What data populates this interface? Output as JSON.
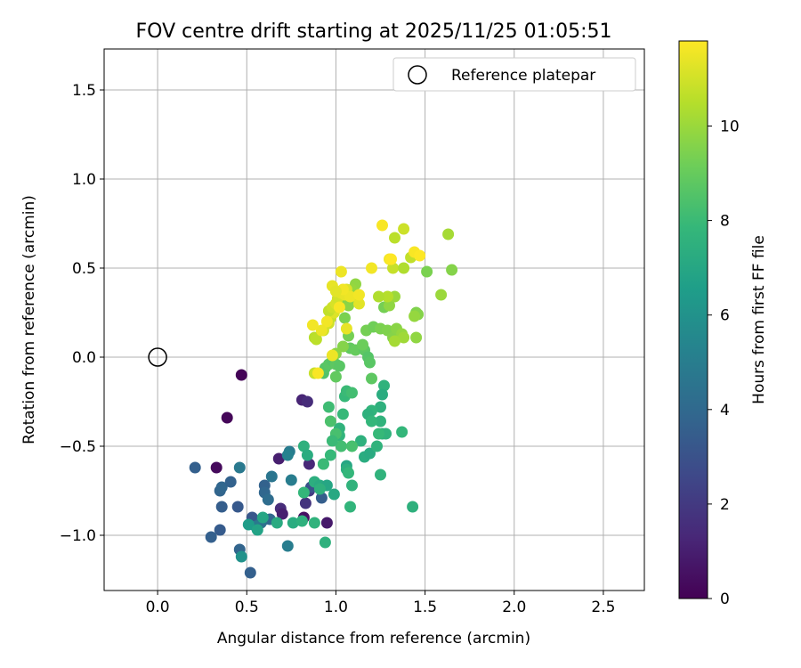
{
  "chart_data": {
    "type": "scatter",
    "title": "FOV centre drift starting at 2025/11/25 01:05:51",
    "xlabel": "Angular distance from reference (arcmin)",
    "ylabel": "Rotation from reference (arcmin)",
    "xlim": [
      -0.3,
      2.73
    ],
    "ylim": [
      -1.31,
      1.73
    ],
    "grid": true,
    "xticks": [
      0.0,
      0.5,
      1.0,
      1.5,
      2.0,
      2.5
    ],
    "xtick_labels": [
      "0.0",
      "0.5",
      "1.0",
      "1.5",
      "2.0",
      "2.5"
    ],
    "yticks": [
      -1.0,
      -0.5,
      0.0,
      0.5,
      1.0,
      1.5
    ],
    "ytick_labels": [
      "−1.0",
      "−0.5",
      "0.0",
      "0.5",
      "1.0",
      "1.5"
    ],
    "legend": {
      "position": "top-right",
      "entries": [
        "Reference platepar"
      ]
    },
    "reference_point": {
      "x": 0.0,
      "y": 0.0
    },
    "colorbar": {
      "label": "Hours from first FF file",
      "range": [
        0,
        11.8
      ],
      "ticks": [
        0,
        2,
        4,
        6,
        8,
        10
      ],
      "tick_labels": [
        "0",
        "2",
        "4",
        "6",
        "8",
        "10"
      ],
      "colormap": "viridis",
      "colors": [
        "#440154",
        "#482878",
        "#3e4989",
        "#31688e",
        "#26828e",
        "#1f9e89",
        "#35b779",
        "#6ece58",
        "#b5de2b",
        "#fde725"
      ]
    },
    "points": [
      [
        0.47,
        -0.1,
        0.1
      ],
      [
        0.39,
        -0.34,
        0.2
      ],
      [
        0.33,
        -0.62,
        0.3
      ],
      [
        0.68,
        -0.57,
        1.0
      ],
      [
        0.81,
        -0.24,
        1.2
      ],
      [
        0.84,
        -0.25,
        1.5
      ],
      [
        0.85,
        -0.6,
        1.3
      ],
      [
        0.83,
        -0.82,
        1.8
      ],
      [
        0.69,
        -0.85,
        1.5
      ],
      [
        0.7,
        -0.88,
        1.0
      ],
      [
        0.82,
        -0.9,
        0.5
      ],
      [
        0.95,
        -0.93,
        0.8
      ],
      [
        0.85,
        -0.75,
        2.0
      ],
      [
        0.86,
        -0.73,
        3.0
      ],
      [
        0.92,
        -0.79,
        3.5
      ],
      [
        0.21,
        -0.62,
        3.6
      ],
      [
        0.35,
        -0.75,
        3.8
      ],
      [
        0.36,
        -0.73,
        3.9
      ],
      [
        0.41,
        -0.7,
        3.7
      ],
      [
        0.36,
        -0.84,
        3.5
      ],
      [
        0.45,
        -0.84,
        3.3
      ],
      [
        0.35,
        -0.97,
        3.4
      ],
      [
        0.3,
        -1.01,
        3.6
      ],
      [
        0.46,
        -1.08,
        3.8
      ],
      [
        0.52,
        -1.21,
        3.6
      ],
      [
        0.53,
        -0.9,
        3.2
      ],
      [
        0.6,
        -0.72,
        3.7
      ],
      [
        0.6,
        -0.76,
        3.9
      ],
      [
        0.62,
        -0.8,
        4.2
      ],
      [
        0.6,
        -0.91,
        4.5
      ],
      [
        0.63,
        -0.91,
        4.0
      ],
      [
        0.58,
        -0.93,
        4.4
      ],
      [
        0.55,
        -0.95,
        4.8
      ],
      [
        0.64,
        -0.67,
        4.6
      ],
      [
        0.46,
        -0.62,
        4.8
      ],
      [
        0.74,
        -0.53,
        4.9
      ],
      [
        0.73,
        -0.55,
        5.2
      ],
      [
        0.75,
        -0.69,
        5.0
      ],
      [
        0.73,
        -1.06,
        5.0
      ],
      [
        0.47,
        -1.12,
        6.0
      ],
      [
        0.51,
        -0.94,
        6.5
      ],
      [
        0.56,
        -0.97,
        6.8
      ],
      [
        0.59,
        -0.9,
        7.0
      ],
      [
        0.67,
        -0.93,
        7.2
      ],
      [
        0.76,
        -0.93,
        7.3
      ],
      [
        0.81,
        -0.92,
        7.5
      ],
      [
        0.88,
        -0.93,
        7.6
      ],
      [
        0.94,
        -1.04,
        7.5
      ],
      [
        0.88,
        -0.7,
        7.4
      ],
      [
        0.91,
        -0.72,
        7.2
      ],
      [
        0.95,
        -0.72,
        7.0
      ],
      [
        0.99,
        -0.77,
        7.1
      ],
      [
        0.91,
        -0.74,
        7.5
      ],
      [
        0.82,
        -0.76,
        7.8
      ],
      [
        0.82,
        -0.5,
        7.5
      ],
      [
        0.84,
        -0.55,
        7.3
      ],
      [
        0.93,
        -0.6,
        7.6
      ],
      [
        0.97,
        -0.55,
        7.9
      ],
      [
        1.06,
        -0.61,
        7.0
      ],
      [
        1.06,
        -0.63,
        7.4
      ],
      [
        1.07,
        -0.65,
        7.8
      ],
      [
        1.09,
        -0.72,
        7.6
      ],
      [
        1.08,
        -0.84,
        7.7
      ],
      [
        1.14,
        -0.47,
        7.5
      ],
      [
        1.16,
        -0.56,
        7.3
      ],
      [
        1.19,
        -0.54,
        7.2
      ],
      [
        1.23,
        -0.5,
        7.6
      ],
      [
        1.26,
        -0.43,
        7.4
      ],
      [
        1.28,
        -0.43,
        7.6
      ],
      [
        1.24,
        -0.43,
        7.9
      ],
      [
        1.25,
        -0.66,
        7.6
      ],
      [
        1.37,
        -0.42,
        7.8
      ],
      [
        1.43,
        -0.84,
        7.5
      ],
      [
        1.27,
        -0.16,
        7.6
      ],
      [
        1.26,
        -0.21,
        7.3
      ],
      [
        1.25,
        -0.28,
        7.5
      ],
      [
        1.25,
        -0.36,
        7.6
      ],
      [
        1.2,
        -0.3,
        7.7
      ],
      [
        1.18,
        -0.32,
        7.5
      ],
      [
        1.2,
        -0.36,
        7.8
      ],
      [
        1.05,
        -0.22,
        7.9
      ],
      [
        1.06,
        -0.19,
        8.0
      ],
      [
        1.09,
        -0.2,
        8.2
      ],
      [
        1.04,
        -0.32,
        7.9
      ],
      [
        1.02,
        -0.4,
        7.6
      ],
      [
        1.02,
        -0.44,
        7.7
      ],
      [
        1.03,
        -0.5,
        8.2
      ],
      [
        1.0,
        -0.43,
        8.3
      ],
      [
        0.98,
        -0.47,
        8.0
      ],
      [
        0.97,
        -0.36,
        8.4
      ],
      [
        0.96,
        -0.28,
        8.1
      ],
      [
        0.93,
        -0.6,
        8.0
      ],
      [
        1.09,
        -0.5,
        8.3
      ],
      [
        0.93,
        -0.09,
        8.5
      ],
      [
        0.94,
        -0.06,
        8.6
      ],
      [
        0.96,
        -0.04,
        8.7
      ],
      [
        0.98,
        -0.02,
        8.6
      ],
      [
        1.0,
        -0.04,
        8.8
      ],
      [
        1.0,
        -0.11,
        8.9
      ],
      [
        1.02,
        -0.05,
        8.7
      ],
      [
        1.08,
        0.05,
        8.9
      ],
      [
        1.11,
        0.04,
        9.0
      ],
      [
        1.16,
        0.04,
        8.8
      ],
      [
        1.18,
        0.0,
        8.6
      ],
      [
        1.19,
        -0.03,
        8.7
      ],
      [
        1.2,
        -0.12,
        8.8
      ],
      [
        1.15,
        0.07,
        9.1
      ],
      [
        1.17,
        0.15,
        9.3
      ],
      [
        1.21,
        0.17,
        9.2
      ],
      [
        1.25,
        0.16,
        9.4
      ],
      [
        1.29,
        0.15,
        9.5
      ],
      [
        1.32,
        0.11,
        9.6
      ],
      [
        1.34,
        0.16,
        9.7
      ],
      [
        1.37,
        0.13,
        9.9
      ],
      [
        1.38,
        0.11,
        10.1
      ],
      [
        1.33,
        0.09,
        10.2
      ],
      [
        1.45,
        0.11,
        9.8
      ],
      [
        1.45,
        0.25,
        9.5
      ],
      [
        1.46,
        0.24,
        9.6
      ],
      [
        1.44,
        0.23,
        9.9
      ],
      [
        1.51,
        0.48,
        9.4
      ],
      [
        1.59,
        0.35,
        10.0
      ],
      [
        1.63,
        0.69,
        10.2
      ],
      [
        1.65,
        0.49,
        9.6
      ],
      [
        1.27,
        0.28,
        9.3
      ],
      [
        1.3,
        0.29,
        9.8
      ],
      [
        1.33,
        0.34,
        10.0
      ],
      [
        1.29,
        0.34,
        10.5
      ],
      [
        1.24,
        0.34,
        10.4
      ],
      [
        1.1,
        0.37,
        10.0
      ],
      [
        1.11,
        0.41,
        9.8
      ],
      [
        1.09,
        0.38,
        9.9
      ],
      [
        1.08,
        0.33,
        9.6
      ],
      [
        1.06,
        0.3,
        9.5
      ],
      [
        1.07,
        0.29,
        9.7
      ],
      [
        1.05,
        0.22,
        9.4
      ],
      [
        1.07,
        0.12,
        9.3
      ],
      [
        1.04,
        0.06,
        9.6
      ],
      [
        1.0,
        0.02,
        9.7
      ],
      [
        1.32,
        0.5,
        10.8
      ],
      [
        1.33,
        0.67,
        10.6
      ],
      [
        1.38,
        0.72,
        10.9
      ],
      [
        1.38,
        0.5,
        10.4
      ],
      [
        1.42,
        0.56,
        10.7
      ],
      [
        0.88,
        0.11,
        10.5
      ],
      [
        0.89,
        0.1,
        10.6
      ],
      [
        0.88,
        -0.09,
        10.8
      ],
      [
        0.93,
        0.15,
        10.9
      ],
      [
        0.96,
        0.19,
        11.0
      ],
      [
        0.97,
        0.22,
        10.8
      ],
      [
        0.99,
        0.25,
        11.2
      ],
      [
        0.96,
        0.26,
        10.7
      ],
      [
        0.98,
        0.28,
        10.9
      ],
      [
        1.0,
        0.3,
        11.1
      ],
      [
        1.01,
        0.33,
        11.0
      ],
      [
        1.03,
        0.36,
        11.3
      ],
      [
        1.05,
        0.35,
        11.4
      ],
      [
        1.06,
        0.38,
        11.2
      ],
      [
        1.08,
        0.34,
        11.5
      ],
      [
        1.04,
        0.38,
        11.6
      ],
      [
        0.98,
        0.4,
        11.4
      ],
      [
        1.0,
        0.37,
        11.3
      ],
      [
        1.03,
        0.48,
        11.5
      ],
      [
        1.13,
        0.3,
        11.3
      ],
      [
        1.13,
        0.35,
        11.6
      ],
      [
        1.02,
        0.28,
        11.7
      ],
      [
        0.98,
        0.01,
        11.5
      ],
      [
        1.06,
        0.16,
        11.4
      ],
      [
        0.95,
        0.2,
        11.6
      ],
      [
        0.92,
        0.15,
        11.5
      ],
      [
        0.87,
        0.18,
        11.6
      ],
      [
        0.9,
        -0.09,
        11.7
      ],
      [
        1.2,
        0.5,
        11.6
      ],
      [
        1.26,
        0.74,
        11.7
      ],
      [
        1.3,
        0.55,
        11.6
      ],
      [
        1.31,
        0.55,
        11.8
      ],
      [
        1.44,
        0.59,
        11.7
      ],
      [
        1.47,
        0.57,
        11.8
      ]
    ]
  }
}
